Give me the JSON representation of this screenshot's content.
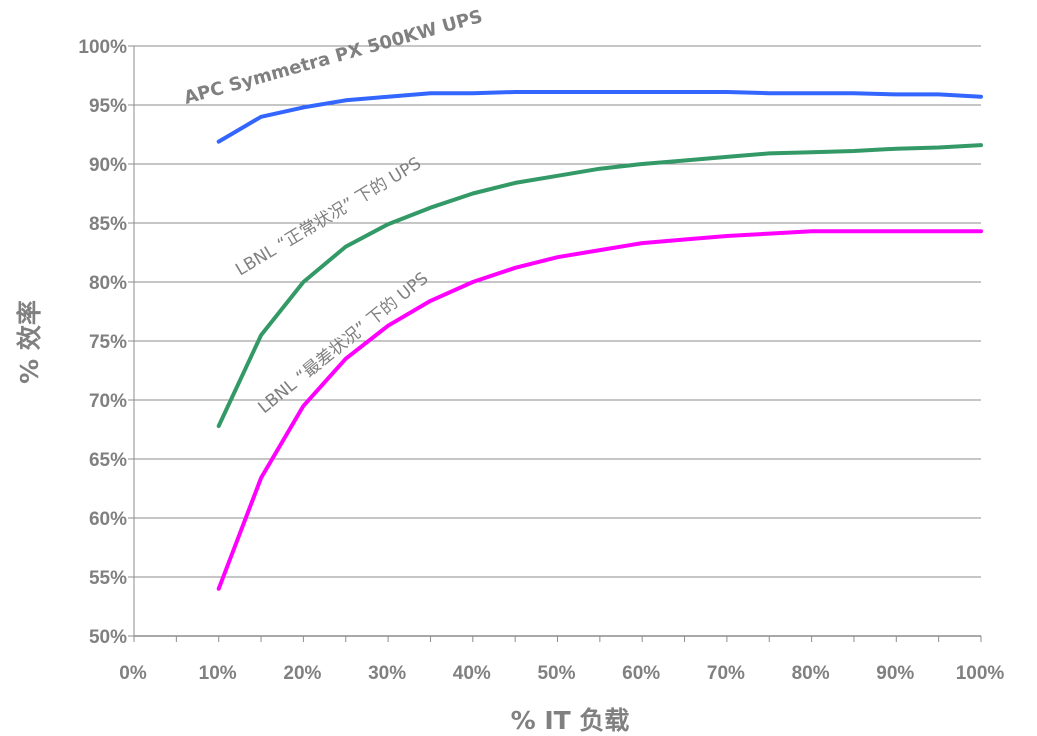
{
  "chart_data": {
    "type": "line",
    "title": "",
    "xlabel": "% IT 负载",
    "ylabel": "% 效率",
    "xlim": [
      0,
      100
    ],
    "ylim": [
      50,
      100
    ],
    "x_ticks": [
      "0%",
      "10%",
      "20%",
      "30%",
      "40%",
      "50%",
      "60%",
      "70%",
      "80%",
      "90%",
      "100%"
    ],
    "y_ticks": [
      "50%",
      "55%",
      "60%",
      "65%",
      "70%",
      "75%",
      "80%",
      "85%",
      "90%",
      "95%",
      "100%"
    ],
    "grid": "horizontal",
    "series": [
      {
        "name": "APC Symmetra PX 500KW UPS",
        "color": "#3366ff",
        "x": [
          10,
          15,
          20,
          25,
          30,
          35,
          40,
          45,
          50,
          55,
          60,
          65,
          70,
          75,
          80,
          85,
          90,
          95,
          100
        ],
        "values": [
          91.9,
          94.0,
          94.8,
          95.4,
          95.7,
          96.0,
          96.0,
          96.1,
          96.1,
          96.1,
          96.1,
          96.1,
          96.1,
          96.0,
          96.0,
          96.0,
          95.9,
          95.9,
          95.7
        ]
      },
      {
        "name": "LBNL “正常状况” 下的  UPS",
        "color": "#339966",
        "x": [
          10,
          15,
          20,
          25,
          30,
          35,
          40,
          45,
          50,
          55,
          60,
          65,
          70,
          75,
          80,
          85,
          90,
          95,
          100
        ],
        "values": [
          67.8,
          75.5,
          80.0,
          83.0,
          84.9,
          86.3,
          87.5,
          88.4,
          89.0,
          89.6,
          90.0,
          90.3,
          90.6,
          90.9,
          91.0,
          91.1,
          91.3,
          91.4,
          91.6
        ]
      },
      {
        "name": "LBNL “最差状况” 下的  UPS",
        "color": "#ff00ff",
        "x": [
          10,
          15,
          20,
          25,
          30,
          35,
          40,
          45,
          50,
          55,
          60,
          65,
          70,
          75,
          80,
          85,
          90,
          95,
          100
        ],
        "values": [
          54.0,
          63.4,
          69.5,
          73.5,
          76.3,
          78.4,
          80.0,
          81.2,
          82.1,
          82.7,
          83.3,
          83.6,
          83.9,
          84.1,
          84.3,
          84.3,
          84.3,
          84.3,
          84.3
        ]
      }
    ]
  }
}
